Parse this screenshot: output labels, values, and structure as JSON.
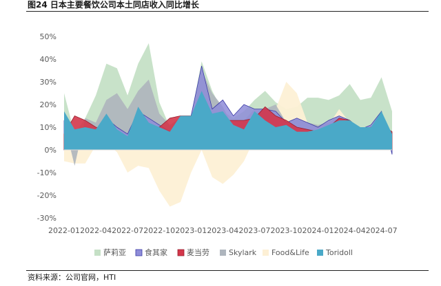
{
  "title": "图24 日本主要餐饮公司本土同店收入同比增长",
  "source": "资料来源：公司官网，HTI",
  "chart_data": {
    "type": "area",
    "x": [
      "2022-01",
      "2022-02",
      "2022-03",
      "2022-04",
      "2022-05",
      "2022-06",
      "2022-07",
      "2022-08",
      "2022-09",
      "2022-10",
      "2022-11",
      "2022-12",
      "2023-01",
      "2023-02",
      "2023-03",
      "2023-04",
      "2023-05",
      "2023-06",
      "2023-07",
      "2023-08",
      "2023-09",
      "2023-10",
      "2023-11",
      "2023-12",
      "2024-01",
      "2024-02",
      "2024-03",
      "2024-04",
      "2024-05",
      "2024-06",
      "2024-07",
      "2024-08"
    ],
    "x_tick_labels": [
      "2022-01",
      "2022-04",
      "2022-07",
      "2022-10",
      "2023-01",
      "2023-04",
      "2023-07",
      "2023-10",
      "2024-01",
      "2024-04",
      "2024-07"
    ],
    "y_tick_labels": [
      "50%",
      "40%",
      "30%",
      "20%",
      "10%",
      "0%",
      "-10%",
      "-20%",
      "-30%"
    ],
    "ylim": [
      -30,
      50
    ],
    "grid": false,
    "legend_position": "bottom",
    "series": [
      {
        "name": "萨莉亚",
        "color": "#c5e0c6",
        "opacity": 0.95,
        "values": [
          25,
          7,
          14,
          24,
          38,
          36,
          24,
          38,
          47,
          21,
          10,
          15,
          15,
          39,
          26,
          17,
          14,
          17,
          22,
          26,
          21,
          18,
          19,
          23,
          23,
          22,
          24,
          29,
          22,
          23,
          32,
          17
        ]
      },
      {
        "name": "Food&Life",
        "color": "#fdf0d5",
        "opacity": 0.95,
        "values": [
          -5,
          -6,
          -6,
          2,
          3,
          -1,
          -10,
          -7,
          -8,
          -18,
          -25,
          -23,
          -10,
          0,
          -12,
          -15,
          -11,
          -5,
          5,
          10,
          18,
          30,
          25,
          12,
          9,
          11,
          18,
          12,
          2,
          4,
          11,
          6
        ]
      },
      {
        "name": "Skylark",
        "color": "#aeb5bd",
        "opacity": 0.9,
        "values": [
          12,
          -7,
          14,
          12,
          22,
          25,
          18,
          26,
          31,
          16,
          11,
          14,
          15,
          35,
          25,
          19,
          10,
          13,
          18,
          18,
          20,
          12,
          14,
          12,
          11,
          12,
          15,
          12,
          8,
          6,
          9,
          8
        ]
      },
      {
        "name": "食其家",
        "color": "#8e8cd8",
        "opacity": 0.85,
        "values": [
          13,
          4,
          10,
          8,
          14,
          10,
          7,
          17,
          14,
          11,
          8,
          12,
          15,
          37,
          18,
          22,
          15,
          20,
          18,
          18,
          17,
          12,
          14,
          12,
          10,
          13,
          15,
          13,
          9,
          11,
          17,
          -2
        ]
      },
      {
        "name": "麦当劳",
        "color": "#d3364a",
        "opacity": 0.9,
        "values": [
          7,
          15,
          13,
          10,
          9,
          8,
          4,
          13,
          10,
          10,
          14,
          15,
          15,
          19,
          15,
          13,
          13,
          13,
          14,
          19,
          15,
          13,
          10,
          9,
          8,
          10,
          14,
          13,
          9,
          10,
          11,
          8
        ]
      },
      {
        "name": "Toridoll",
        "color": "#4aa9c8",
        "opacity": 1.0,
        "values": [
          17,
          9,
          10,
          9,
          16,
          9,
          6,
          19,
          12,
          10,
          8,
          15,
          15,
          26,
          16,
          17,
          11,
          9,
          17,
          13,
          10,
          11,
          8,
          8,
          9,
          11,
          13,
          13,
          10,
          10,
          17,
          7
        ]
      }
    ],
    "legend_order": [
      "萨莉亚",
      "食其家",
      "麦当劳",
      "Skylark",
      "Food&Life",
      "Toridoll"
    ]
  }
}
